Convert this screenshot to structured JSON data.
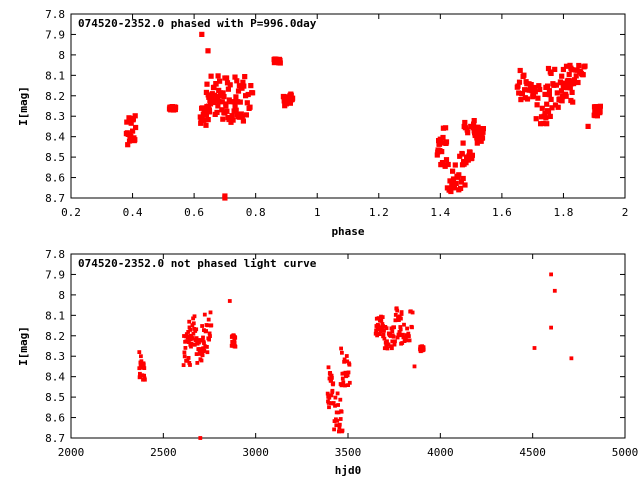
{
  "chart_data": [
    {
      "type": "scatter",
      "title": "074520-2352.0 phased with P=996.0day",
      "xlabel": "phase",
      "ylabel": "I[mag]",
      "xlim": [
        0.2,
        2
      ],
      "ylim": [
        8.7,
        7.8
      ],
      "y_inverted": true,
      "xticks": [
        "0.2",
        "0.4",
        "0.6",
        "0.8",
        "1",
        "1.2",
        "1.4",
        "1.6",
        "1.8",
        "2"
      ],
      "yticks": [
        "7.8",
        "7.9",
        "8",
        "8.1",
        "8.2",
        "8.3",
        "8.4",
        "8.5",
        "8.6",
        "8.7"
      ],
      "marker_color": "#ff0000",
      "clusters": [
        {
          "x": [
            0.38,
            0.41
          ],
          "y": [
            8.28,
            8.44
          ]
        },
        {
          "x": [
            0.52,
            0.54
          ],
          "y": [
            8.25,
            8.27
          ]
        },
        {
          "x": [
            0.62,
            0.65
          ],
          "y": [
            8.25,
            8.35
          ]
        },
        {
          "x": [
            0.64,
            0.68
          ],
          "y": [
            8.1,
            8.3
          ]
        },
        {
          "x": [
            0.66,
            0.72
          ],
          "y": [
            8.1,
            8.25
          ]
        },
        {
          "x": [
            0.69,
            0.76
          ],
          "y": [
            8.25,
            8.33
          ]
        },
        {
          "x": [
            0.73,
            0.79
          ],
          "y": [
            8.08,
            8.3
          ]
        },
        {
          "x": [
            0.86,
            0.88
          ],
          "y": [
            8.02,
            8.04
          ]
        },
        {
          "x": [
            0.89,
            0.92
          ],
          "y": [
            8.19,
            8.25
          ]
        },
        {
          "x": [
            1.39,
            1.42
          ],
          "y": [
            8.35,
            8.55
          ]
        },
        {
          "x": [
            1.42,
            1.48
          ],
          "y": [
            8.48,
            8.67
          ]
        },
        {
          "x": [
            1.47,
            1.51
          ],
          "y": [
            8.3,
            8.55
          ]
        },
        {
          "x": [
            1.51,
            1.54
          ],
          "y": [
            8.35,
            8.44
          ]
        },
        {
          "x": [
            1.65,
            1.7
          ],
          "y": [
            8.07,
            8.22
          ]
        },
        {
          "x": [
            1.7,
            1.76
          ],
          "y": [
            8.15,
            8.34
          ]
        },
        {
          "x": [
            1.74,
            1.8
          ],
          "y": [
            8.06,
            8.26
          ]
        },
        {
          "x": [
            1.79,
            1.83
          ],
          "y": [
            8.13,
            8.24
          ]
        },
        {
          "x": [
            1.81,
            1.87
          ],
          "y": [
            8.05,
            8.16
          ]
        },
        {
          "x": [
            1.9,
            1.92
          ],
          "y": [
            8.25,
            8.3
          ]
        }
      ],
      "singles": [
        [
          0.625,
          7.9
        ],
        [
          0.645,
          7.98
        ],
        [
          0.7,
          8.7
        ],
        [
          0.7,
          8.69
        ],
        [
          1.88,
          8.35
        ],
        [
          1.46,
          8.66
        ],
        [
          1.44,
          8.65
        ]
      ]
    },
    {
      "type": "scatter",
      "title": "074520-2352.0 not phased light curve",
      "xlabel": "hjd0",
      "ylabel": "I[mag]",
      "xlim": [
        2000,
        5000
      ],
      "ylim": [
        8.7,
        7.8
      ],
      "y_inverted": true,
      "xticks": [
        "2000",
        "2500",
        "3000",
        "3500",
        "4000",
        "4500",
        "5000"
      ],
      "yticks": [
        "7.8",
        "7.9",
        "8",
        "8.1",
        "8.2",
        "8.3",
        "8.4",
        "8.5",
        "8.6",
        "8.7"
      ],
      "marker_color": "#ff0000",
      "clusters": [
        {
          "x": [
            2370,
            2400
          ],
          "y": [
            8.28,
            8.42
          ]
        },
        {
          "x": [
            2610,
            2650
          ],
          "y": [
            8.18,
            8.35
          ]
        },
        {
          "x": [
            2640,
            2680
          ],
          "y": [
            8.1,
            8.25
          ]
        },
        {
          "x": [
            2680,
            2720
          ],
          "y": [
            8.22,
            8.34
          ]
        },
        {
          "x": [
            2710,
            2760
          ],
          "y": [
            8.08,
            8.3
          ]
        },
        {
          "x": [
            2870,
            2890
          ],
          "y": [
            8.19,
            8.26
          ]
        },
        {
          "x": [
            3390,
            3420
          ],
          "y": [
            8.35,
            8.55
          ]
        },
        {
          "x": [
            3420,
            3470
          ],
          "y": [
            8.48,
            8.67
          ]
        },
        {
          "x": [
            3460,
            3510
          ],
          "y": [
            8.26,
            8.45
          ]
        },
        {
          "x": [
            3650,
            3690
          ],
          "y": [
            8.1,
            8.2
          ]
        },
        {
          "x": [
            3690,
            3740
          ],
          "y": [
            8.15,
            8.27
          ]
        },
        {
          "x": [
            3740,
            3790
          ],
          "y": [
            8.05,
            8.25
          ]
        },
        {
          "x": [
            3780,
            3850
          ],
          "y": [
            8.08,
            8.24
          ]
        },
        {
          "x": [
            3890,
            3910
          ],
          "y": [
            8.25,
            8.28
          ]
        }
      ],
      "singles": [
        [
          2370,
          8.28
        ],
        [
          2700,
          8.7
        ],
        [
          2860,
          8.03
        ],
        [
          3860,
          8.35
        ],
        [
          4510,
          8.26
        ],
        [
          4600,
          7.9
        ],
        [
          4620,
          7.98
        ],
        [
          4600,
          8.16
        ],
        [
          4710,
          8.31
        ]
      ]
    }
  ]
}
